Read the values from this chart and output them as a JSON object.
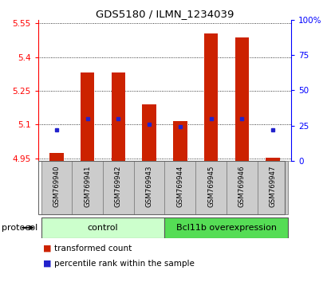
{
  "title": "GDS5180 / ILMN_1234039",
  "samples": [
    "GSM769940",
    "GSM769941",
    "GSM769942",
    "GSM769943",
    "GSM769944",
    "GSM769945",
    "GSM769946",
    "GSM769947"
  ],
  "transformed_counts": [
    4.975,
    5.33,
    5.33,
    5.19,
    5.115,
    5.505,
    5.485,
    4.955
  ],
  "percentile_ranks": [
    22,
    30,
    30,
    26,
    24,
    30,
    30,
    22
  ],
  "ylim_left": [
    4.94,
    5.565
  ],
  "ylim_right": [
    0,
    100
  ],
  "yticks_left": [
    4.95,
    5.1,
    5.25,
    5.4,
    5.55
  ],
  "ytick_labels_left": [
    "4.95",
    "5.1",
    "5.25",
    "5.4",
    "5.55"
  ],
  "yticks_right": [
    0,
    25,
    50,
    75,
    100
  ],
  "ytick_labels_right": [
    "0",
    "25",
    "50",
    "75",
    "100%"
  ],
  "bar_bottom": 4.94,
  "bar_color": "#cc2200",
  "percentile_color": "#2222cc",
  "control_label": "control",
  "overexpression_label": "Bcl11b overexpression",
  "protocol_label": "protocol",
  "legend_bar_label": "transformed count",
  "legend_pct_label": "percentile rank within the sample",
  "control_color": "#ccffcc",
  "overexp_color": "#55dd55",
  "xlabel_area_color": "#cccccc",
  "xlabel_area_edge": "#888888",
  "grid_color": "#000000",
  "bar_width": 0.45
}
